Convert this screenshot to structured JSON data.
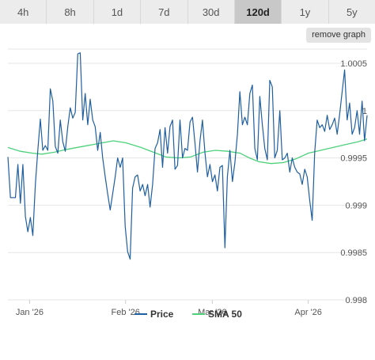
{
  "range_tabs": [
    {
      "label": "4h",
      "active": false
    },
    {
      "label": "8h",
      "active": false
    },
    {
      "label": "1d",
      "active": false
    },
    {
      "label": "7d",
      "active": false
    },
    {
      "label": "30d",
      "active": false
    },
    {
      "label": "120d",
      "active": true
    },
    {
      "label": "1y",
      "active": false
    },
    {
      "label": "5y",
      "active": false
    }
  ],
  "remove_graph_label": "remove graph",
  "chart_data": {
    "type": "line",
    "x_tick_labels": [
      "Jan '26",
      "Feb '26",
      "Mar '26",
      "Apr '26"
    ],
    "x_tick_positions": [
      7,
      38,
      66,
      97
    ],
    "x_range": [
      0,
      116
    ],
    "y_ticks": [
      0.998,
      0.9985,
      0.999,
      0.9995,
      1.0,
      1.0005
    ],
    "y_tick_labels": [
      "0.998",
      "0.9985",
      "0.999",
      "0.9995",
      "1",
      "1.0005"
    ],
    "ylim": [
      0.998,
      1.00065
    ],
    "grid": true,
    "legend": {
      "position": "bottom-center"
    },
    "series": [
      {
        "name": "Price",
        "color": "#1f5f9f",
        "values": [
          0.99951,
          0.99908,
          0.99908,
          0.99908,
          0.99943,
          0.99902,
          0.99943,
          0.99888,
          0.99872,
          0.99887,
          0.99868,
          0.99922,
          0.99958,
          0.99991,
          0.99958,
          0.99963,
          0.99958,
          1.00023,
          1.0001,
          0.99962,
          0.99955,
          0.9999,
          0.99967,
          0.99957,
          0.99983,
          1.00003,
          0.99992,
          0.99998,
          1.0006,
          1.00061,
          0.9999,
          1.00018,
          0.99985,
          1.00012,
          0.9999,
          0.99983,
          0.99958,
          0.99977,
          0.9995,
          0.9993,
          0.99912,
          0.99895,
          0.99912,
          0.9993,
          0.9995,
          0.9994,
          0.9995,
          0.99878,
          0.99851,
          0.99843,
          0.99918,
          0.9993,
          0.99932,
          0.99915,
          0.99922,
          0.9991,
          0.99922,
          0.99898,
          0.99922,
          0.9996,
          0.99966,
          0.9998,
          0.9994,
          0.99982,
          0.99955,
          0.99983,
          0.9999,
          0.99938,
          0.99942,
          0.9999,
          0.9995,
          0.9996,
          0.99958,
          0.99988,
          0.99993,
          0.99965,
          0.99935,
          0.99968,
          0.9999,
          0.99955,
          0.9993,
          0.99943,
          0.99925,
          0.99932,
          0.99915,
          0.9994,
          0.99942,
          0.99855,
          0.9993,
          0.99958,
          0.99925,
          0.99945,
          0.99975,
          1.0002,
          0.99985,
          0.99993,
          0.99985,
          1.00018,
          1.00027,
          0.9996,
          0.99948,
          1.00015,
          0.99985,
          0.9996,
          0.99948,
          1.00032,
          1.00025,
          0.9995,
          0.99958,
          1.0,
          0.99948,
          0.9995,
          0.99955,
          0.99935,
          0.9995,
          0.9994,
          0.99935,
          0.99933,
          0.99922,
          0.99938,
          0.9993,
          0.99905,
          0.99884,
          0.99956,
          0.9999,
          0.99982,
          0.99985,
          0.99978,
          0.99995,
          0.9998,
          0.99985,
          0.99992,
          0.99975,
          0.99996,
          1.0002,
          1.00043,
          0.9999,
          1.00008,
          0.99975,
          0.99982,
          1.0,
          0.99975,
          1.0001,
          0.99968,
          0.99995
        ],
        "x_start": 0,
        "x_end": 116
      },
      {
        "name": "SMA 50",
        "color": "#4cd17a",
        "points": [
          [
            0,
            0.99961
          ],
          [
            4,
            0.99957
          ],
          [
            8,
            0.99955
          ],
          [
            11,
            0.99954
          ],
          [
            15,
            0.99956
          ],
          [
            19,
            0.99959
          ],
          [
            24,
            0.99962
          ],
          [
            29,
            0.99965
          ],
          [
            34,
            0.99968
          ],
          [
            38,
            0.99966
          ],
          [
            43,
            0.99961
          ],
          [
            47,
            0.99956
          ],
          [
            51,
            0.99951
          ],
          [
            55,
            0.9995
          ],
          [
            59,
            0.99951
          ],
          [
            63,
            0.99956
          ],
          [
            67,
            0.99958
          ],
          [
            71,
            0.99957
          ],
          [
            75,
            0.99955
          ],
          [
            78,
            0.9995
          ],
          [
            81,
            0.99946
          ],
          [
            85,
            0.99944
          ],
          [
            89,
            0.99945
          ],
          [
            93,
            0.99949
          ],
          [
            97,
            0.99955
          ],
          [
            101,
            0.99958
          ],
          [
            105,
            0.99961
          ],
          [
            109,
            0.99964
          ],
          [
            113,
            0.99967
          ],
          [
            116,
            0.9997
          ]
        ]
      }
    ]
  }
}
